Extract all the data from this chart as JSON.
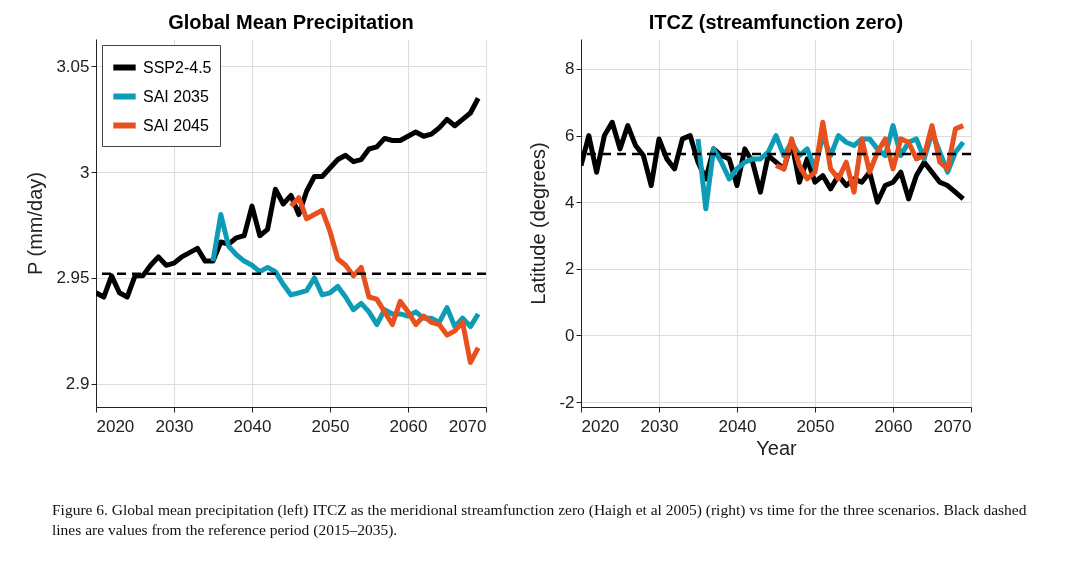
{
  "chart_data": [
    {
      "type": "line",
      "title": "Global Mean Precipitation",
      "ylabel": "P (mm/day)",
      "xlim": [
        2020,
        2070
      ],
      "xticks": [
        2020,
        2030,
        2040,
        2050,
        2060,
        2070
      ],
      "ylim": [
        2.889,
        3.063
      ],
      "yticks": [
        2.9,
        2.95,
        3,
        3.05
      ],
      "grid": true,
      "legend": "top left",
      "line_style": "solid",
      "annotations": [
        "Figure 6. Global mean precipitation (left) ITCZ as the meridional streamfunction zero (Haigh et al 2005) (right) vs time for the three scenarios. Black dashed lines are values from the reference period (2015–2035)."
      ],
      "ref_lines": [
        {
          "axis": "y",
          "value": 2.952,
          "color": "#000000",
          "line_style": "dashed"
        }
      ],
      "series": [
        {
          "name": "SSP2-4.5",
          "color": "#000000",
          "x": [
            2020,
            2021,
            2022,
            2023,
            2024,
            2025,
            2026,
            2027,
            2028,
            2029,
            2030,
            2031,
            2032,
            2033,
            2034,
            2035,
            2036,
            2037,
            2038,
            2039,
            2040,
            2041,
            2042,
            2043,
            2044,
            2045,
            2046,
            2047,
            2048,
            2049,
            2050,
            2051,
            2052,
            2053,
            2054,
            2055,
            2056,
            2057,
            2058,
            2059,
            2060,
            2061,
            2062,
            2063,
            2064,
            2065,
            2066,
            2067,
            2068,
            2069
          ],
          "values": [
            2.943,
            2.941,
            2.951,
            2.943,
            2.941,
            2.951,
            2.951,
            2.956,
            2.96,
            2.956,
            2.957,
            2.96,
            2.962,
            2.964,
            2.958,
            2.958,
            2.967,
            2.966,
            2.969,
            2.97,
            2.984,
            2.97,
            2.973,
            2.992,
            2.985,
            2.989,
            2.98,
            2.991,
            2.998,
            2.998,
            3.002,
            3.006,
            3.008,
            3.005,
            3.006,
            3.011,
            3.012,
            3.016,
            3.015,
            3.015,
            3.017,
            3.019,
            3.017,
            3.018,
            3.021,
            3.025,
            3.022,
            3.025,
            3.028,
            3.035
          ]
        },
        {
          "name": "SAI 2035",
          "color": "#0d9cb5",
          "x": [
            2035,
            2036,
            2037,
            2038,
            2039,
            2040,
            2041,
            2042,
            2043,
            2044,
            2045,
            2046,
            2047,
            2048,
            2049,
            2050,
            2051,
            2052,
            2053,
            2054,
            2055,
            2056,
            2057,
            2058,
            2059,
            2060,
            2061,
            2062,
            2063,
            2064,
            2065,
            2066,
            2067,
            2068,
            2069
          ],
          "values": [
            2.958,
            2.98,
            2.965,
            2.961,
            2.958,
            2.956,
            2.953,
            2.955,
            2.953,
            2.947,
            2.942,
            2.943,
            2.944,
            2.95,
            2.942,
            2.943,
            2.946,
            2.941,
            2.935,
            2.938,
            2.934,
            2.928,
            2.935,
            2.933,
            2.933,
            2.932,
            2.934,
            2.931,
            2.931,
            2.929,
            2.936,
            2.927,
            2.931,
            2.927,
            2.933
          ]
        },
        {
          "name": "SAI 2045",
          "color": "#e8511e",
          "x": [
            2045,
            2046,
            2047,
            2048,
            2049,
            2050,
            2051,
            2052,
            2053,
            2054,
            2055,
            2056,
            2057,
            2058,
            2059,
            2060,
            2061,
            2062,
            2063,
            2064,
            2065,
            2066,
            2067,
            2068,
            2069
          ],
          "values": [
            2.984,
            2.988,
            2.978,
            2.98,
            2.982,
            2.972,
            2.959,
            2.956,
            2.951,
            2.955,
            2.941,
            2.94,
            2.934,
            2.928,
            2.939,
            2.934,
            2.928,
            2.932,
            2.929,
            2.928,
            2.923,
            2.925,
            2.929,
            2.91,
            2.917
          ]
        }
      ]
    },
    {
      "type": "line",
      "title": "ITCZ (streamfunction zero)",
      "xlabel": "Year",
      "ylabel": "Latitude (degrees)",
      "xlim": [
        2020,
        2070
      ],
      "xticks": [
        2020,
        2030,
        2040,
        2050,
        2060,
        2070
      ],
      "ylim": [
        -2.15,
        8.9
      ],
      "yticks": [
        -2,
        0,
        2,
        4,
        6,
        8
      ],
      "grid": true,
      "line_style": "solid",
      "ref_lines": [
        {
          "axis": "y",
          "value": 5.45,
          "color": "#000000",
          "line_style": "dashed"
        }
      ],
      "series": [
        {
          "color": "#000000",
          "x": [
            2020,
            2021,
            2022,
            2023,
            2024,
            2025,
            2026,
            2027,
            2028,
            2029,
            2030,
            2031,
            2032,
            2033,
            2034,
            2035,
            2036,
            2037,
            2038,
            2039,
            2040,
            2041,
            2042,
            2043,
            2044,
            2045,
            2046,
            2047,
            2048,
            2049,
            2050,
            2051,
            2052,
            2053,
            2054,
            2055,
            2056,
            2057,
            2058,
            2059,
            2060,
            2061,
            2062,
            2063,
            2064,
            2065,
            2066,
            2067,
            2068,
            2069
          ],
          "values": [
            5.1,
            6.0,
            4.9,
            6.0,
            6.4,
            5.6,
            6.3,
            5.7,
            5.4,
            4.5,
            5.9,
            5.3,
            5.0,
            5.9,
            6.0,
            5.2,
            4.7,
            5.6,
            5.4,
            5.3,
            4.5,
            5.6,
            5.2,
            4.3,
            5.4,
            5.2,
            5.0,
            5.8,
            4.6,
            5.3,
            4.6,
            4.8,
            4.4,
            4.8,
            4.5,
            4.7,
            4.6,
            4.9,
            4.0,
            4.5,
            4.6,
            4.9,
            4.1,
            4.8,
            5.2,
            4.9,
            4.6,
            4.5,
            4.3,
            4.1
          ]
        },
        {
          "color": "#0d9cb5",
          "x": [
            2035,
            2036,
            2037,
            2038,
            2039,
            2040,
            2041,
            2042,
            2043,
            2044,
            2045,
            2046,
            2047,
            2048,
            2049,
            2050,
            2051,
            2052,
            2053,
            2054,
            2055,
            2056,
            2057,
            2058,
            2059,
            2060,
            2061,
            2062,
            2063,
            2064,
            2065,
            2066,
            2067,
            2068,
            2069
          ],
          "values": [
            5.9,
            3.8,
            5.6,
            5.2,
            4.7,
            5.0,
            5.2,
            5.3,
            5.3,
            5.5,
            6.0,
            5.4,
            5.8,
            5.4,
            5.6,
            5.0,
            6.0,
            5.4,
            6.0,
            5.8,
            5.7,
            5.9,
            5.9,
            5.6,
            5.4,
            6.3,
            5.4,
            5.8,
            5.9,
            5.3,
            6.1,
            5.5,
            4.9,
            5.5,
            5.8
          ]
        },
        {
          "color": "#e8511e",
          "x": [
            2045,
            2046,
            2047,
            2048,
            2049,
            2050,
            2051,
            2052,
            2053,
            2054,
            2055,
            2056,
            2057,
            2058,
            2059,
            2060,
            2061,
            2062,
            2063,
            2064,
            2065,
            2066,
            2067,
            2068,
            2069
          ],
          "values": [
            5.1,
            5.0,
            5.9,
            5.1,
            4.7,
            4.9,
            6.4,
            5.0,
            4.7,
            5.2,
            4.3,
            5.9,
            4.9,
            5.5,
            5.9,
            5.0,
            5.9,
            5.8,
            5.3,
            5.4,
            6.3,
            5.2,
            5.0,
            6.2,
            6.3
          ]
        }
      ]
    }
  ]
}
